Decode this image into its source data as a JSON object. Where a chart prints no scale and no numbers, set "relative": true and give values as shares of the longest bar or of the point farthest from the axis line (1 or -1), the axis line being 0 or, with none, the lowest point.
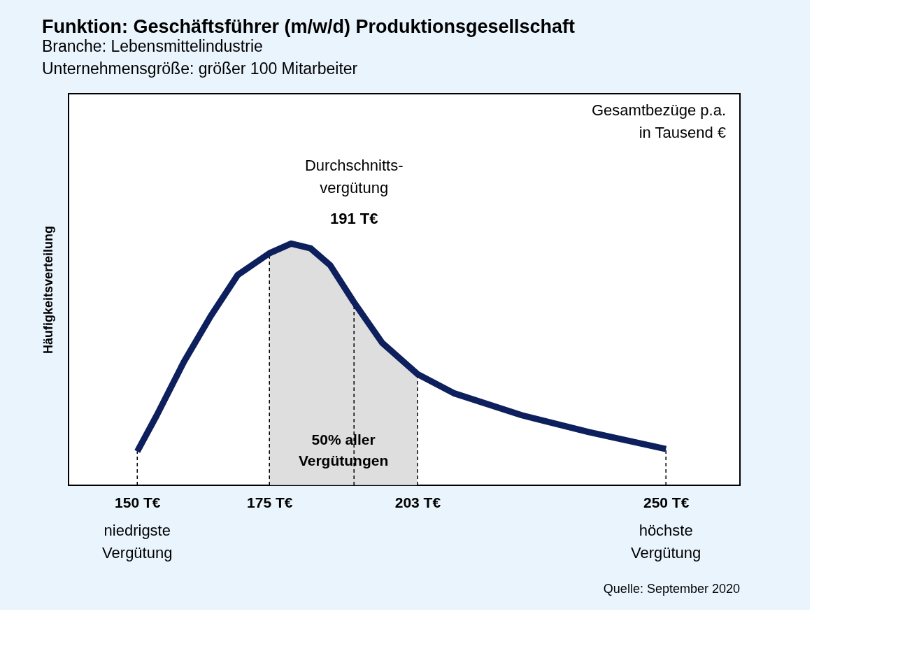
{
  "chart_data": {
    "type": "line",
    "title": "Funktion: Geschäftsführer (m/w/d) Produktionsgesellschaft",
    "subtitle": "Branche: Lebensmittelindustrie\nUnternehmensgröße: größer 100 Mitarbeiter",
    "ylabel": "Häufigkeitsverteilung",
    "relative": true,
    "x": [
      150,
      153.7,
      158.8,
      163.9,
      169,
      175,
      179.1,
      182.8,
      186.5,
      190.9,
      196.3,
      203,
      210,
      222.7,
      235.4,
      250
    ],
    "series": [
      {
        "type": "area",
        "color": "#d6d6d6",
        "x": [
          175,
          179.1,
          182.8,
          186.5,
          190.9,
          196.3,
          203
        ],
        "values": [
          0.96,
          1.0,
          0.98,
          0.91,
          0.76,
          0.59,
          0.46
        ]
      },
      {
        "color": "#0d1f5c",
        "values": [
          0.14,
          0.29,
          0.51,
          0.7,
          0.87,
          0.96,
          1.0,
          0.98,
          0.91,
          0.76,
          0.59,
          0.46,
          0.38,
          0.29,
          0.22,
          0.15
        ]
      }
    ],
    "xlim": [
      137,
      264
    ],
    "xticks": [
      {
        "value": 150,
        "label": "150 T€"
      },
      {
        "value": 175,
        "label": "175 T€"
      },
      {
        "value": 203,
        "label": "203 T€"
      },
      {
        "value": 250,
        "label": "250 T€"
      }
    ],
    "ref_lines": [
      {
        "axis": "x",
        "value": 150,
        "line_style": "dashed"
      },
      {
        "axis": "x",
        "value": 175,
        "line_style": "dashed"
      },
      {
        "axis": "x",
        "value": 191,
        "line_style": "dashed",
        "label": "Durchschnitts-\nvergütung\n191 T€"
      },
      {
        "axis": "x",
        "value": 203,
        "line_style": "dashed"
      },
      {
        "axis": "x",
        "value": 250,
        "line_style": "dashed"
      }
    ],
    "annotations": [
      "Gesamtbezüge p.a.\nin Tausend €",
      "50% aller\nVergütungen",
      "niedrigste\nVergütung",
      "höchste\nVergütung",
      "Quelle: September 2020"
    ],
    "grid": false,
    "marker": "none",
    "line_style": "solid"
  }
}
